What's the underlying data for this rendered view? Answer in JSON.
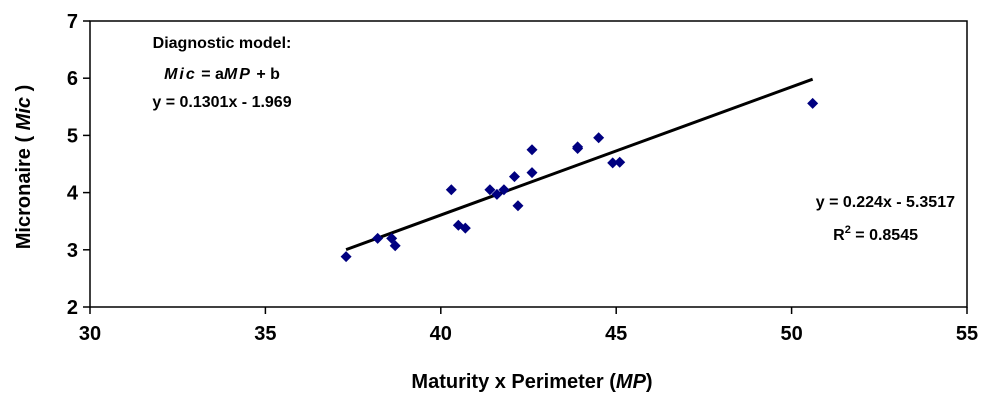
{
  "chart_data": {
    "type": "scatter",
    "xlabel_prefix": "Maturity x Perimeter (",
    "xlabel_italic": "MP",
    "xlabel_suffix": ")",
    "ylabel_prefix": "Micronaire ( ",
    "ylabel_italic": "Mic",
    "ylabel_suffix": " )",
    "xlim": [
      30,
      55
    ],
    "ylim": [
      2,
      7
    ],
    "xticks": [
      "30",
      "35",
      "40",
      "45",
      "50",
      "55"
    ],
    "yticks": [
      "2",
      "3",
      "4",
      "5",
      "6",
      "7"
    ],
    "grid": false,
    "marker_color": "#000080",
    "line_color": "#000000",
    "points": [
      {
        "x": 37.3,
        "y": 2.88
      },
      {
        "x": 38.2,
        "y": 3.2
      },
      {
        "x": 38.6,
        "y": 3.2
      },
      {
        "x": 38.7,
        "y": 3.07
      },
      {
        "x": 40.3,
        "y": 4.05
      },
      {
        "x": 40.5,
        "y": 3.43
      },
      {
        "x": 40.7,
        "y": 3.38
      },
      {
        "x": 41.4,
        "y": 4.05
      },
      {
        "x": 41.6,
        "y": 3.97
      },
      {
        "x": 41.8,
        "y": 4.05
      },
      {
        "x": 42.1,
        "y": 4.28
      },
      {
        "x": 42.2,
        "y": 3.77
      },
      {
        "x": 42.6,
        "y": 4.75
      },
      {
        "x": 42.6,
        "y": 4.35
      },
      {
        "x": 43.9,
        "y": 4.77
      },
      {
        "x": 43.9,
        "y": 4.8
      },
      {
        "x": 44.5,
        "y": 4.96
      },
      {
        "x": 44.9,
        "y": 4.52
      },
      {
        "x": 45.1,
        "y": 4.53
      },
      {
        "x": 50.6,
        "y": 5.56
      }
    ],
    "trendline": {
      "slope": 0.224,
      "intercept": -5.3517,
      "x_start": 37.3,
      "x_end": 50.6
    },
    "annotations": {
      "model_title": "Diagnostic model:",
      "model_eq_mic": "Mic",
      "model_eq_mid": " = a",
      "model_eq_mp": "MP",
      "model_eq_end": " + b",
      "model_fit": "y = 0.1301x - 1.969",
      "fit_equation": "y = 0.224x - 5.3517",
      "r2_prefix": "R",
      "r2_sup": "2",
      "r2_value": " = 0.8545"
    }
  }
}
